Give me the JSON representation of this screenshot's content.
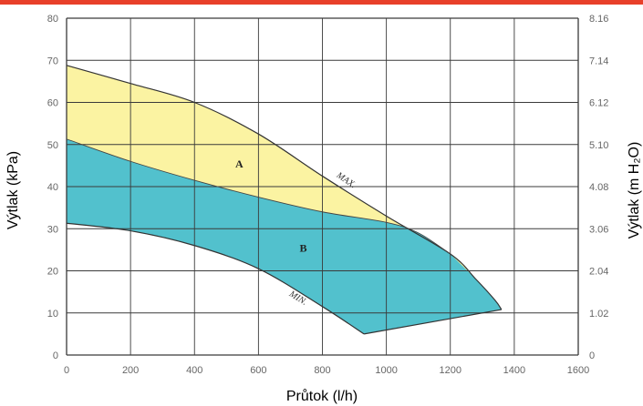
{
  "chart_data": {
    "type": "area",
    "xlabel": "Průtok (l/h)",
    "ylabel": "Výtlak (kPa)",
    "y2label": "Výtlak (m H₂O)",
    "xlim": [
      0,
      1600
    ],
    "ylim": [
      0,
      80
    ],
    "grid": true,
    "x_ticks": [
      "0",
      "200",
      "400",
      "600",
      "800",
      "1000",
      "1200",
      "1400",
      "1600"
    ],
    "y_ticks": [
      "0",
      "10",
      "20",
      "30",
      "40",
      "50",
      "60",
      "70",
      "80"
    ],
    "y2_ticks": [
      "0",
      "1.02",
      "2.04",
      "3.06",
      "4.08",
      "5.10",
      "6.12",
      "7.14",
      "8.16"
    ],
    "series": [
      {
        "name": "MAX.",
        "x": [
          0,
          200,
          400,
          600,
          800,
          1000,
          1200,
          1280,
          1340,
          1360
        ],
        "y": [
          68.8,
          64.5,
          60,
          52.5,
          42.5,
          33,
          24,
          18,
          13,
          10.8
        ]
      },
      {
        "x": [
          0,
          200,
          400,
          600,
          800,
          1000,
          1100,
          1200
        ],
        "y": [
          51.3,
          46,
          41.5,
          37.5,
          34,
          31.5,
          29,
          24
        ]
      },
      {
        "name": "MIN.",
        "x": [
          0,
          200,
          400,
          600,
          800,
          930
        ],
        "y": [
          31.3,
          29.5,
          26,
          20.5,
          11.5,
          5
        ]
      },
      {
        "x": [
          930,
          1360
        ],
        "y": [
          5,
          10.8
        ]
      }
    ],
    "regions": [
      {
        "label": "A",
        "color": "#FBF3A2",
        "x": 540,
        "y": 44.5
      },
      {
        "label": "B",
        "color": "#52C1CD",
        "x": 740,
        "y": 24.5
      }
    ],
    "curve_labels": [
      {
        "text": "MAX.",
        "x": 870,
        "y": 41
      },
      {
        "text": "MIN.",
        "x": 720,
        "y": 13
      }
    ],
    "colors": {
      "top_bar": "#E8402A",
      "region_a": "#FBF3A2",
      "region_b": "#52C1CD",
      "grid": "#3A3A3A"
    }
  }
}
